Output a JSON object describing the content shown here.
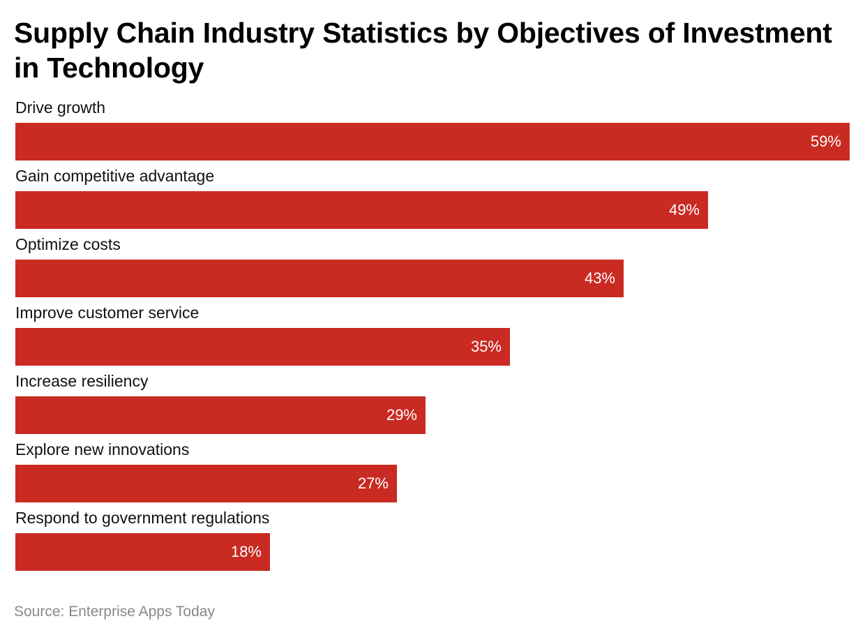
{
  "chart_data": {
    "type": "bar",
    "orientation": "horizontal",
    "title": "Supply Chain Industry Statistics by Objectives of Investment in Technology",
    "categories": [
      "Drive growth",
      "Gain competitive advantage",
      "Optimize costs",
      "Improve customer service",
      "Increase resiliency",
      "Explore new innovations",
      "Respond to government regulations"
    ],
    "values": [
      59,
      49,
      43,
      35,
      29,
      27,
      18
    ],
    "value_labels": [
      "59%",
      "49%",
      "43%",
      "35%",
      "29%",
      "27%",
      "18%"
    ],
    "unit": "%",
    "xlim": [
      0,
      59
    ],
    "xlabel": "",
    "ylabel": "",
    "grid": false,
    "bar_color": "#c92a22",
    "source": "Source: Enterprise Apps Today"
  }
}
